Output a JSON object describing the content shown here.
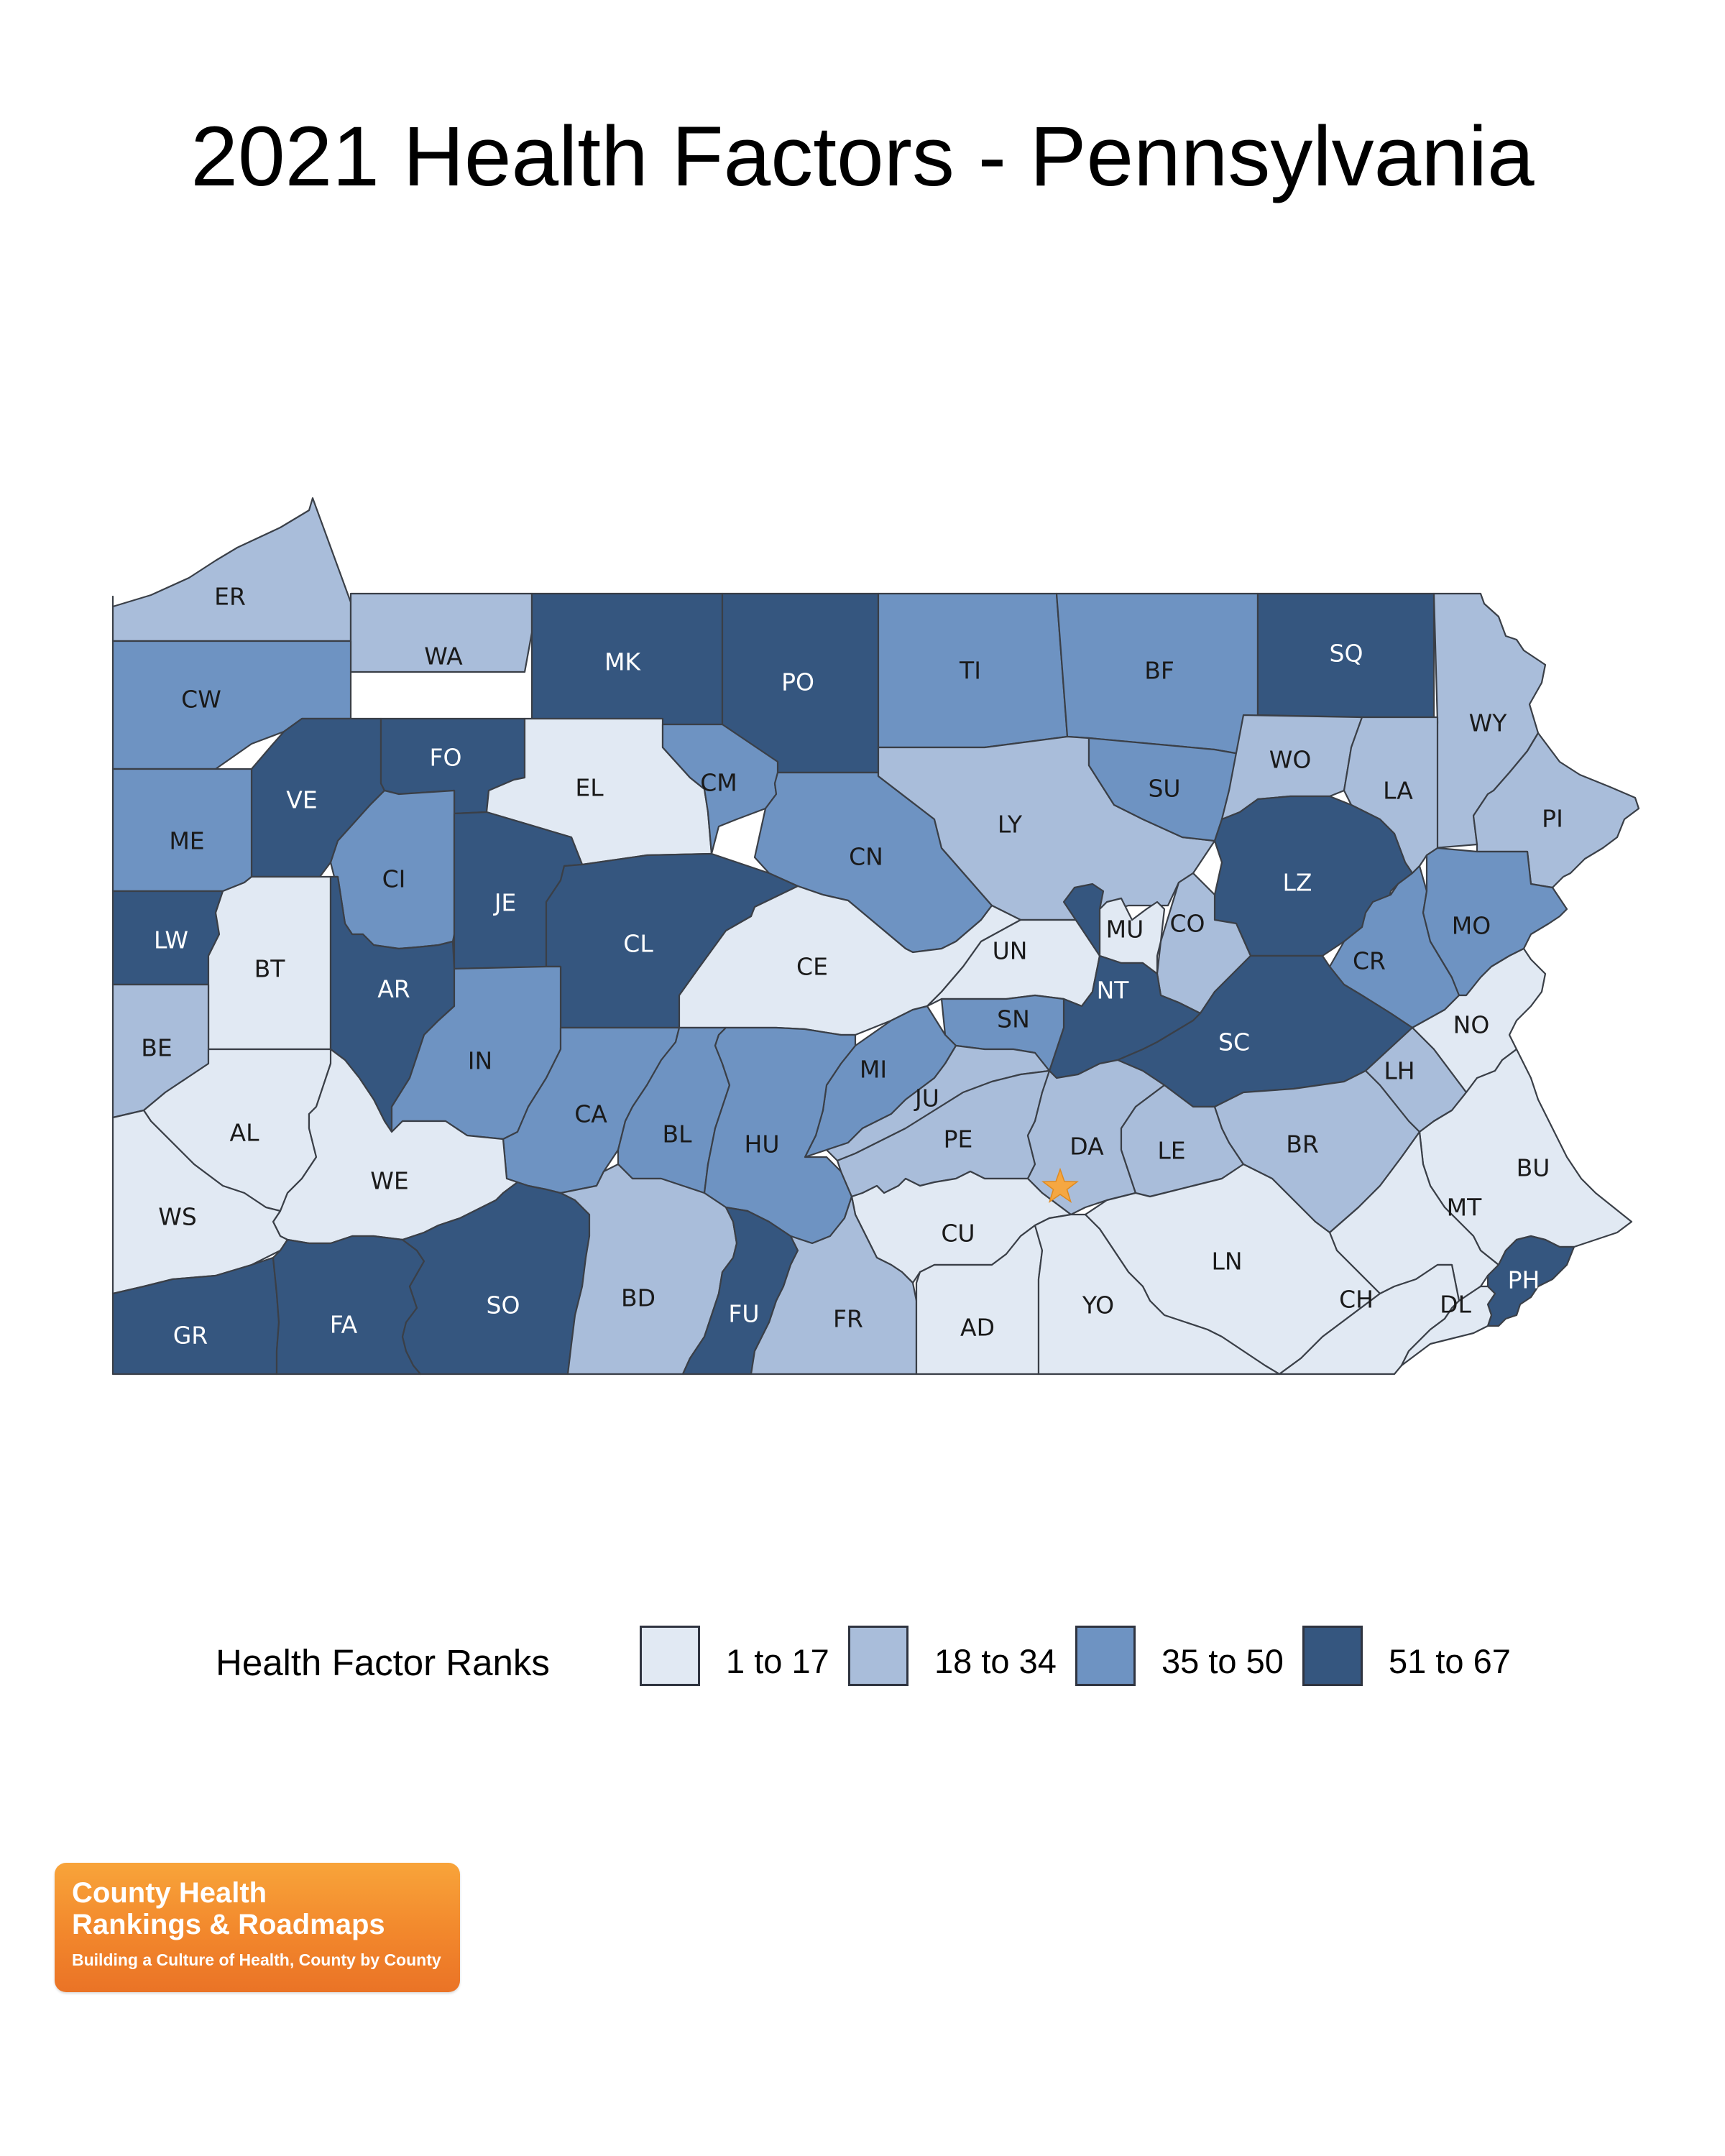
{
  "title": "2021 Health Factors - Pennsylvania",
  "legend": {
    "title": "Health Factor Ranks",
    "items": [
      {
        "label": "1 to 17",
        "color": "#e1e9f3"
      },
      {
        "label": "18 to 34",
        "color": "#a9bdda"
      },
      {
        "label": "35 to 50",
        "color": "#6e93c2"
      },
      {
        "label": "51 to 67",
        "color": "#35567f"
      }
    ]
  },
  "marker": {
    "icon": "star-icon",
    "color": "#f5a742",
    "county": "DA"
  },
  "logo": {
    "line1": "County Health",
    "line2": "Rankings & Roadmaps",
    "tagline": "Building a Culture of Health, County by County"
  },
  "counties": [
    {
      "abbr": "ER",
      "tier": 2
    },
    {
      "abbr": "WA",
      "tier": 2
    },
    {
      "abbr": "MK",
      "tier": 4
    },
    {
      "abbr": "PO",
      "tier": 4
    },
    {
      "abbr": "TI",
      "tier": 3
    },
    {
      "abbr": "BF",
      "tier": 3
    },
    {
      "abbr": "SQ",
      "tier": 4
    },
    {
      "abbr": "WY",
      "tier": 2
    },
    {
      "abbr": "CW",
      "tier": 3
    },
    {
      "abbr": "VE",
      "tier": 4
    },
    {
      "abbr": "FO",
      "tier": 4
    },
    {
      "abbr": "EL",
      "tier": 1
    },
    {
      "abbr": "CM",
      "tier": 3
    },
    {
      "abbr": "CN",
      "tier": 3
    },
    {
      "abbr": "LY",
      "tier": 2
    },
    {
      "abbr": "SU",
      "tier": 3
    },
    {
      "abbr": "WO",
      "tier": 2
    },
    {
      "abbr": "LA",
      "tier": 2
    },
    {
      "abbr": "PI",
      "tier": 2
    },
    {
      "abbr": "ME",
      "tier": 3
    },
    {
      "abbr": "CI",
      "tier": 3
    },
    {
      "abbr": "JE",
      "tier": 4
    },
    {
      "abbr": "CL",
      "tier": 4
    },
    {
      "abbr": "CE",
      "tier": 1
    },
    {
      "abbr": "LZ",
      "tier": 4
    },
    {
      "abbr": "MU",
      "tier": 1
    },
    {
      "abbr": "CO",
      "tier": 2
    },
    {
      "abbr": "UN",
      "tier": 1
    },
    {
      "abbr": "CR",
      "tier": 3
    },
    {
      "abbr": "MO",
      "tier": 3
    },
    {
      "abbr": "LW",
      "tier": 4
    },
    {
      "abbr": "BT",
      "tier": 1
    },
    {
      "abbr": "AR",
      "tier": 4
    },
    {
      "abbr": "NT",
      "tier": 4
    },
    {
      "abbr": "SC",
      "tier": 4
    },
    {
      "abbr": "SN",
      "tier": 3
    },
    {
      "abbr": "NO",
      "tier": 1
    },
    {
      "abbr": "BE",
      "tier": 2
    },
    {
      "abbr": "IN",
      "tier": 3
    },
    {
      "abbr": "MI",
      "tier": 3
    },
    {
      "abbr": "LH",
      "tier": 2
    },
    {
      "abbr": "AL",
      "tier": 1
    },
    {
      "abbr": "CA",
      "tier": 3
    },
    {
      "abbr": "BL",
      "tier": 3
    },
    {
      "abbr": "HU",
      "tier": 3
    },
    {
      "abbr": "JU",
      "tier": 2
    },
    {
      "abbr": "PE",
      "tier": 2
    },
    {
      "abbr": "DA",
      "tier": 2
    },
    {
      "abbr": "LE",
      "tier": 2
    },
    {
      "abbr": "BR",
      "tier": 2
    },
    {
      "abbr": "BU",
      "tier": 1
    },
    {
      "abbr": "WE",
      "tier": 1
    },
    {
      "abbr": "WS",
      "tier": 1
    },
    {
      "abbr": "MT",
      "tier": 1
    },
    {
      "abbr": "CU",
      "tier": 1
    },
    {
      "abbr": "LN",
      "tier": 1
    },
    {
      "abbr": "PH",
      "tier": 4
    },
    {
      "abbr": "CH",
      "tier": 1
    },
    {
      "abbr": "DL",
      "tier": 1
    },
    {
      "abbr": "GR",
      "tier": 4
    },
    {
      "abbr": "FA",
      "tier": 4
    },
    {
      "abbr": "SO",
      "tier": 4
    },
    {
      "abbr": "BD",
      "tier": 2
    },
    {
      "abbr": "FU",
      "tier": 4
    },
    {
      "abbr": "FR",
      "tier": 2
    },
    {
      "abbr": "AD",
      "tier": 1
    },
    {
      "abbr": "YO",
      "tier": 1
    }
  ]
}
